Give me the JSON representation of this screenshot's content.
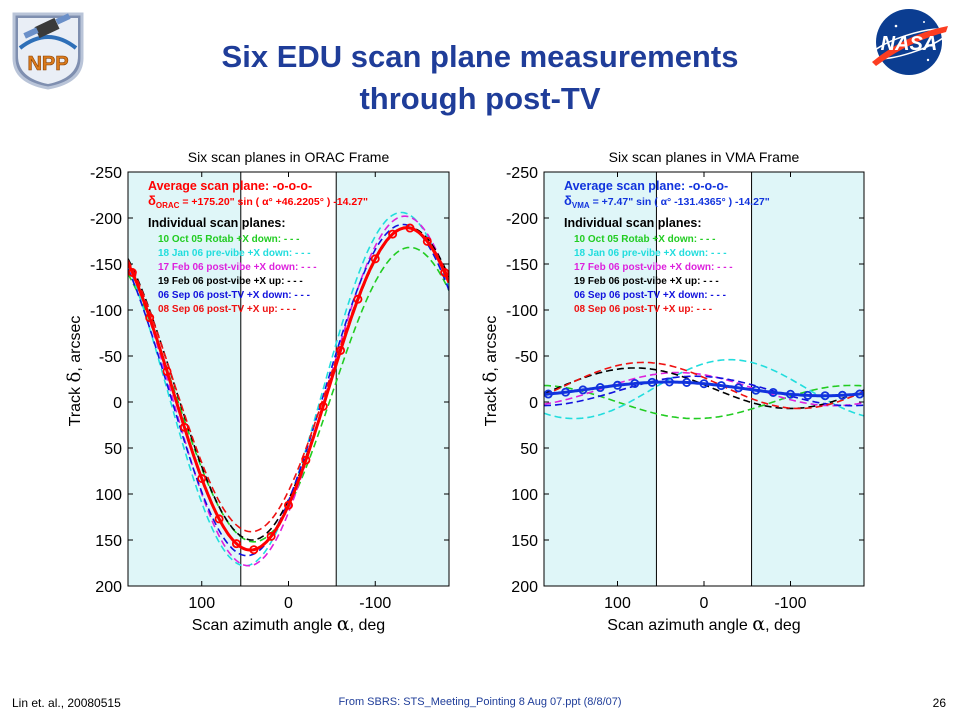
{
  "slide": {
    "title_line1": "Six EDU scan plane measurements",
    "title_line2": "through post-TV",
    "footer_left": "Lin et. al., 20080515",
    "footer_center": "From SBRS: STS_Meeting_Pointing  8 Aug 07.ppt (8/8/07)",
    "page_number": "26",
    "logo_left_text": "NPP",
    "logo_right_text": "NASA"
  },
  "chart_data": [
    {
      "type": "line",
      "title": "Six scan planes in ORAC Frame",
      "xlabel": "Scan azimuth angle",
      "xlabel_symbol": "α",
      "xlabel_unit": ", deg",
      "ylabel": "Track",
      "ylabel_symbol": "δ",
      "ylabel_unit": ", arcsec",
      "xlim": [
        185,
        -185
      ],
      "ylim": [
        -250,
        200
      ],
      "y_inverted": true,
      "xticks": [
        100,
        0,
        -100
      ],
      "yticks": [
        -250,
        -200,
        -150,
        -100,
        -50,
        0,
        50,
        100,
        150,
        200
      ],
      "shaded_x_ranges": [
        [
          185,
          55
        ],
        [
          -55,
          -185
        ]
      ],
      "shade_color": "#dff6f8",
      "vertical_lines": [
        55,
        -55
      ],
      "avg_label": "Average scan plane:  -o-o-o-",
      "equation": {
        "prefix": "δ",
        "sub": "ORAC",
        "text": " = +175.20\" sin ( α° +46.2205° ) -14.27\""
      },
      "individual_label": "Individual scan planes:",
      "avg_color": "#ff0000",
      "avg_params": {
        "amp": 175.2,
        "phase": 46.2205,
        "offset": -14.27
      },
      "avg_points_x": [
        180,
        160,
        140,
        120,
        100,
        80,
        60,
        40,
        20,
        0,
        -20,
        -40,
        -60,
        -80,
        -100,
        -120,
        -140,
        -160,
        -180
      ],
      "series": [
        {
          "name": "10 Oct 05 Rotab +X down: - - -",
          "color": "#22cc22",
          "amp": 160,
          "phase": 50,
          "offset": -8
        },
        {
          "name": "18 Jan 06 pre-vibe +X down: - - -",
          "color": "#22dddd",
          "amp": 192,
          "phase": 40,
          "offset": -14
        },
        {
          "name": "17 Feb 06 post-vibe +X down: - - -",
          "color": "#dd22dd",
          "amp": 190,
          "phase": 44,
          "offset": -12
        },
        {
          "name": "19 Feb 06 post-vibe +X up: - - -",
          "color": "#000000",
          "amp": 170,
          "phase": 48,
          "offset": -20
        },
        {
          "name": "06 Sep 06 post-TV +X down: - - -",
          "color": "#1111dd",
          "amp": 180,
          "phase": 42,
          "offset": -13
        },
        {
          "name": "08 Sep 06 post-TV +X up: - - -",
          "color": "#ee1111",
          "amp": 165,
          "phase": 47,
          "offset": -24
        }
      ]
    },
    {
      "type": "line",
      "title": "Six scan planes in VMA Frame",
      "xlabel": "Scan azimuth angle",
      "xlabel_symbol": "α",
      "xlabel_unit": ", deg",
      "ylabel": "Track",
      "ylabel_symbol": "δ",
      "ylabel_unit": ", arcsec",
      "xlim": [
        185,
        -185
      ],
      "ylim": [
        -250,
        200
      ],
      "y_inverted": true,
      "xticks": [
        100,
        0,
        -100
      ],
      "yticks": [
        -250,
        -200,
        -150,
        -100,
        -50,
        0,
        50,
        100,
        150,
        200
      ],
      "shaded_x_ranges": [
        [
          185,
          55
        ],
        [
          -55,
          -185
        ]
      ],
      "shade_color": "#dff6f8",
      "vertical_lines": [
        55,
        -55
      ],
      "avg_label": "Average scan plane:  -o-o-o-",
      "equation": {
        "prefix": "δ",
        "sub": "VMA",
        "text": " = +7.47\" sin ( α° -131.4365° ) -14.27\""
      },
      "individual_label": "Individual scan planes:",
      "avg_color": "#1133dd",
      "avg_params": {
        "amp": 7.47,
        "phase": -131.4365,
        "offset": -14.27
      },
      "avg_points_x": [
        180,
        160,
        140,
        120,
        100,
        80,
        60,
        40,
        20,
        0,
        -20,
        -40,
        -60,
        -80,
        -100,
        -120,
        -140,
        -160,
        -180
      ],
      "series": [
        {
          "name": "10 Oct 05 Rotab +X down: - - -",
          "color": "#22cc22",
          "amp": 18,
          "phase": 80,
          "offset": 0
        },
        {
          "name": "18 Jan 06 pre-vibe +X down: - - -",
          "color": "#22dddd",
          "amp": 32,
          "phase": -60,
          "offset": -14
        },
        {
          "name": "17 Feb 06 post-vibe +X down: - - -",
          "color": "#dd22dd",
          "amp": 18,
          "phase": -120,
          "offset": -14
        },
        {
          "name": "19 Feb 06 post-vibe +X up: - - -",
          "color": "#000000",
          "amp": 22,
          "phase": -170,
          "offset": -15
        },
        {
          "name": "06 Sep 06 post-TV +X down: - - -",
          "color": "#1111dd",
          "amp": 16,
          "phase": -100,
          "offset": -12
        },
        {
          "name": "08 Sep 06 post-TV +X up: - - -",
          "color": "#ee1111",
          "amp": 25,
          "phase": -160,
          "offset": -18
        }
      ]
    }
  ]
}
